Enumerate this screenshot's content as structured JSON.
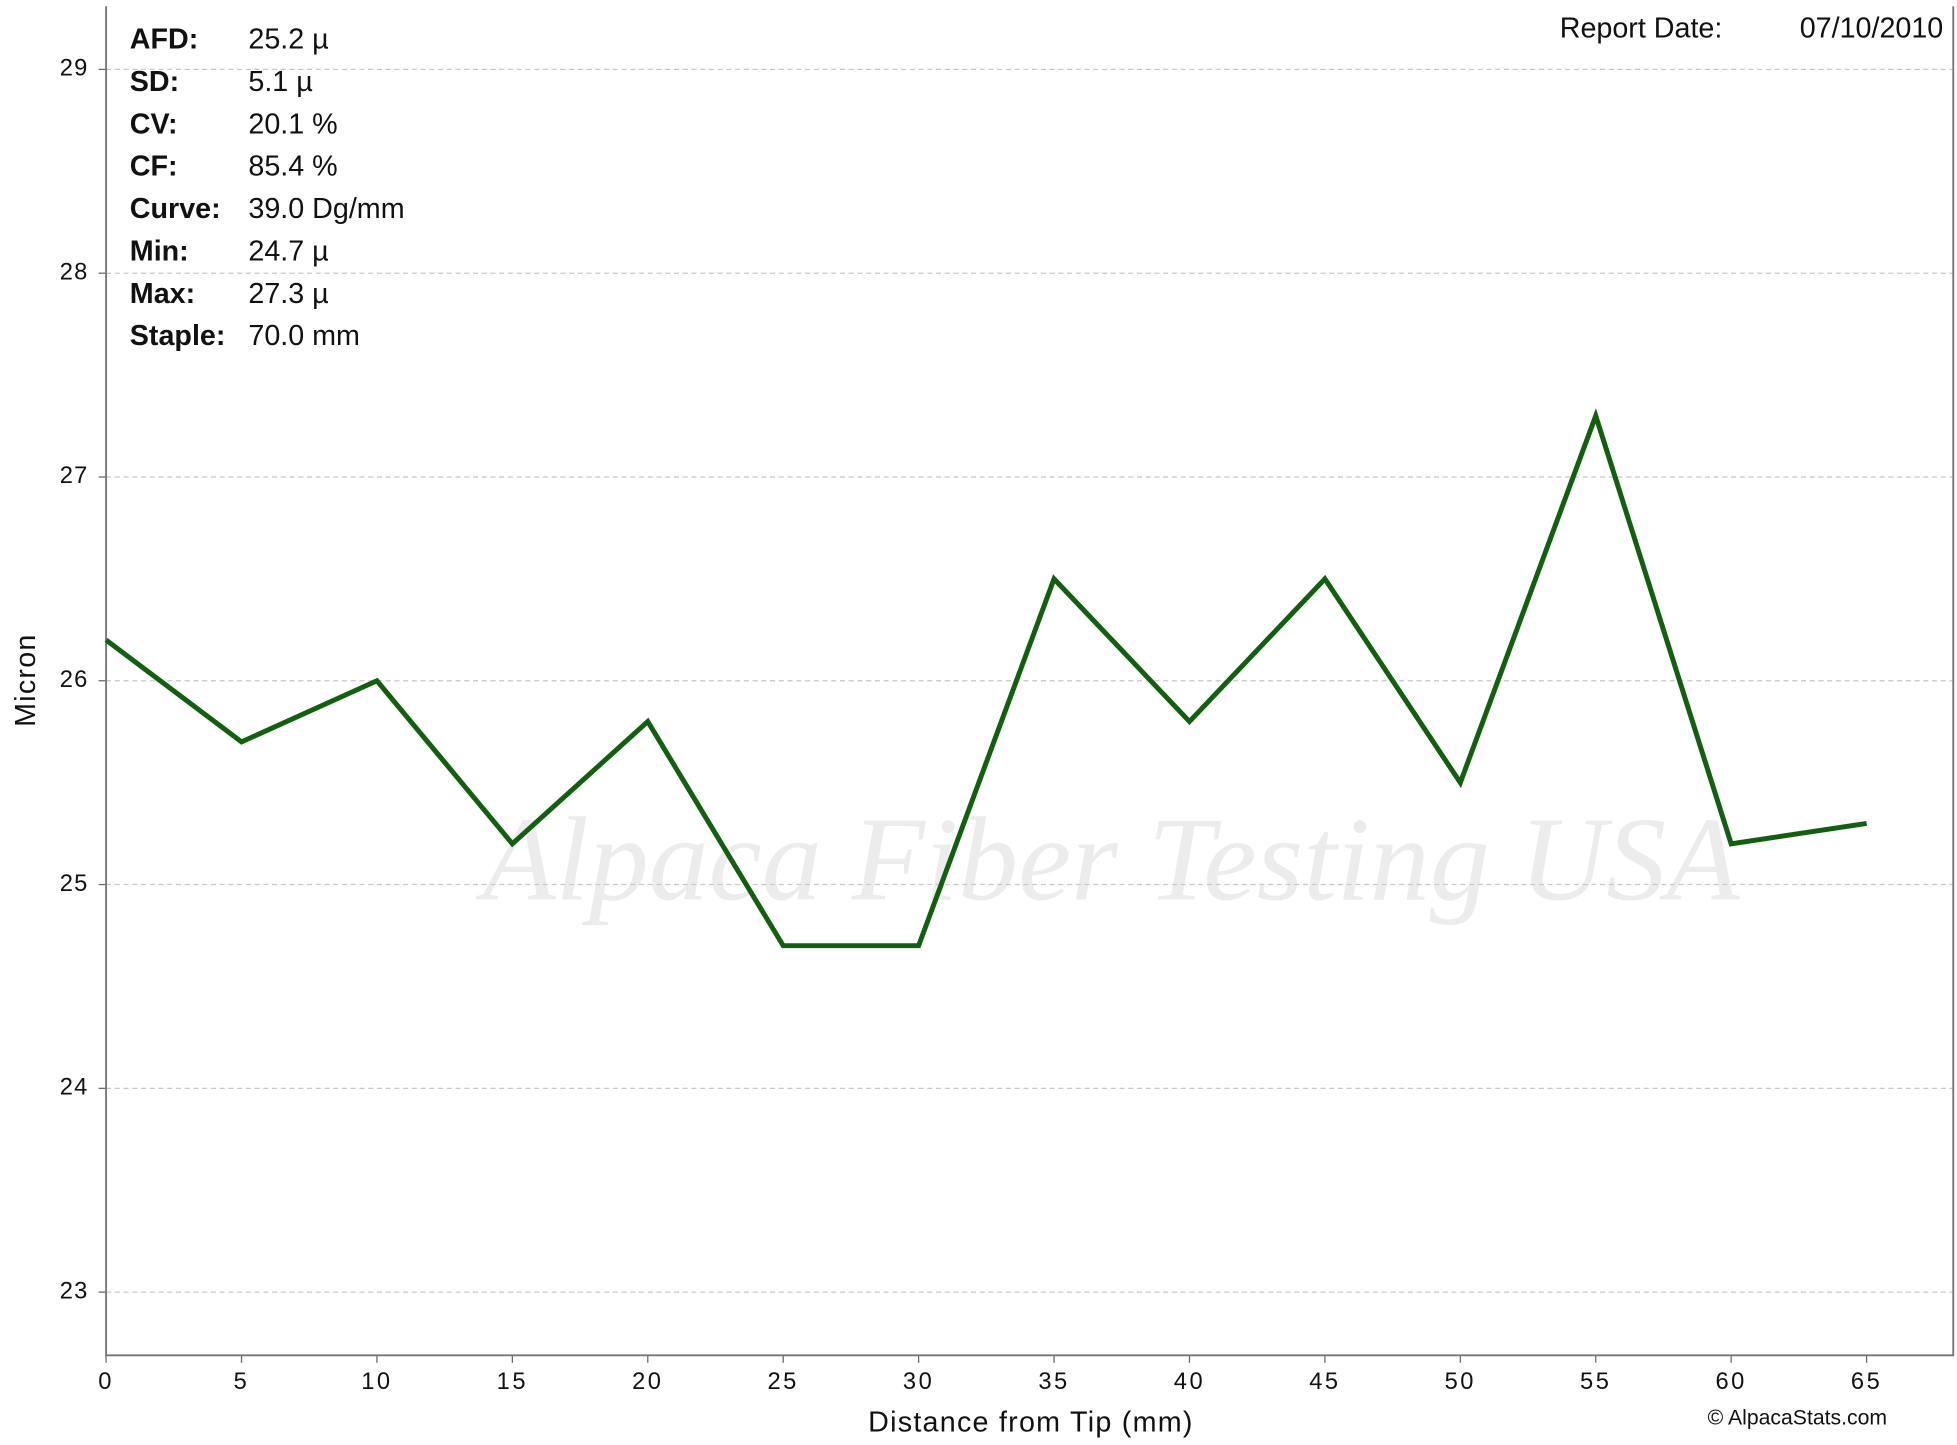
{
  "chart_data": {
    "type": "line",
    "report_date_label": "Report Date:",
    "report_date": "07/10/2010",
    "watermark": "Alpaca Fiber Testing USA",
    "stats": [
      {
        "label": "AFD:",
        "value": "25.2 µ"
      },
      {
        "label": "SD:",
        "value": "5.1 µ"
      },
      {
        "label": "CV:",
        "value": "20.1 %"
      },
      {
        "label": "CF:",
        "value": "85.4 %"
      },
      {
        "label": "Curve:",
        "value": "39.0 Dg/mm"
      },
      {
        "label": "Min:",
        "value": "24.7 µ"
      },
      {
        "label": "Max:",
        "value": "27.3 µ"
      },
      {
        "label": "Staple:",
        "value": "70.0 mm"
      }
    ],
    "x_label": "Distance from Tip (mm)",
    "y_label": "Micron",
    "copyright": "© AlpacaStats.com",
    "x": [
      0,
      5,
      10,
      15,
      20,
      25,
      30,
      35,
      40,
      45,
      50,
      55,
      60,
      65
    ],
    "series": [
      {
        "name": "Micron",
        "color": "#12600f",
        "values": [
          26.2,
          25.7,
          26.0,
          25.2,
          25.8,
          24.7,
          24.7,
          26.5,
          25.8,
          26.5,
          25.5,
          27.3,
          25.2,
          25.3
        ]
      }
    ],
    "xlim": [
      0,
      68.2
    ],
    "ylim": [
      22.69,
      29.31
    ],
    "xticks": [
      0,
      5,
      10,
      15,
      20,
      25,
      30,
      35,
      40,
      45,
      50,
      55,
      60,
      65
    ],
    "yticks": [
      23,
      24,
      25,
      26,
      27,
      28,
      29
    ],
    "grid": true
  }
}
